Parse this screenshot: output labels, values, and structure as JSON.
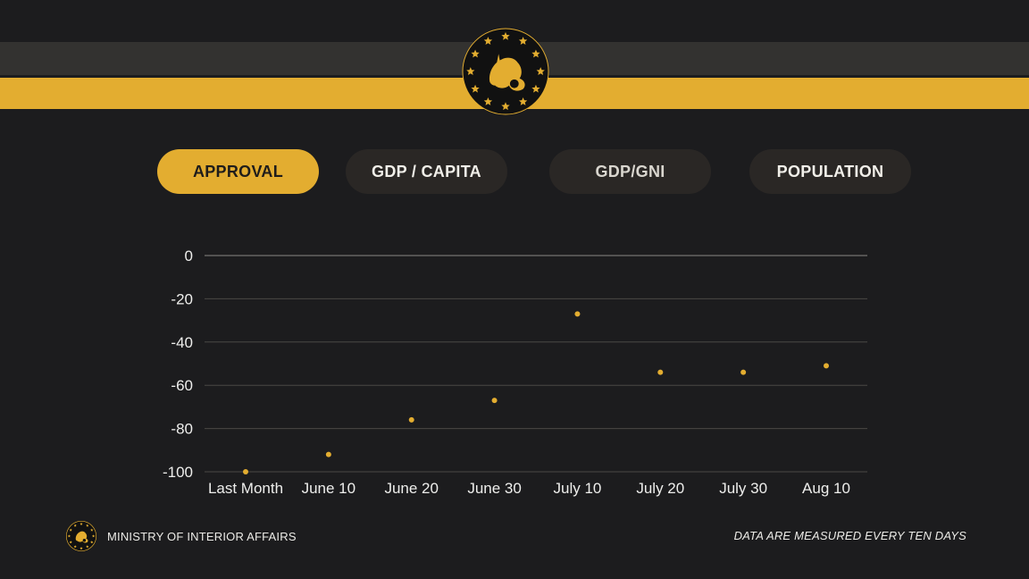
{
  "header": {
    "emblem_icon": "lion-stars-emblem-icon",
    "colors": {
      "gold": "#e3ad30",
      "dark_band": "#333230",
      "background": "#1c1c1e"
    }
  },
  "tabs": [
    {
      "label": "APPROVAL",
      "active": true
    },
    {
      "label": "GDP / CAPITA",
      "active": false
    },
    {
      "label": "GDP/GNI",
      "active": false
    },
    {
      "label": "POPULATION",
      "active": false
    }
  ],
  "chart_data": {
    "type": "scatter",
    "title": "",
    "xlabel": "",
    "ylabel": "",
    "categories": [
      "Last Month",
      "June 10",
      "June 20",
      "June 30",
      "July 10",
      "July 20",
      "July 30",
      "Aug 10"
    ],
    "values": [
      -100,
      -92,
      -76,
      -67,
      -27,
      -54,
      -54,
      -51
    ],
    "ylim": [
      -100,
      0
    ],
    "yticks": [
      0,
      -20,
      -40,
      -60,
      -80,
      -100
    ],
    "grid": true,
    "point_color": "#e3ad30"
  },
  "footer": {
    "ministry": "MINISTRY OF INTERIOR AFFAIRS",
    "note": "DATA ARE MEASURED EVERY TEN DAYS"
  }
}
